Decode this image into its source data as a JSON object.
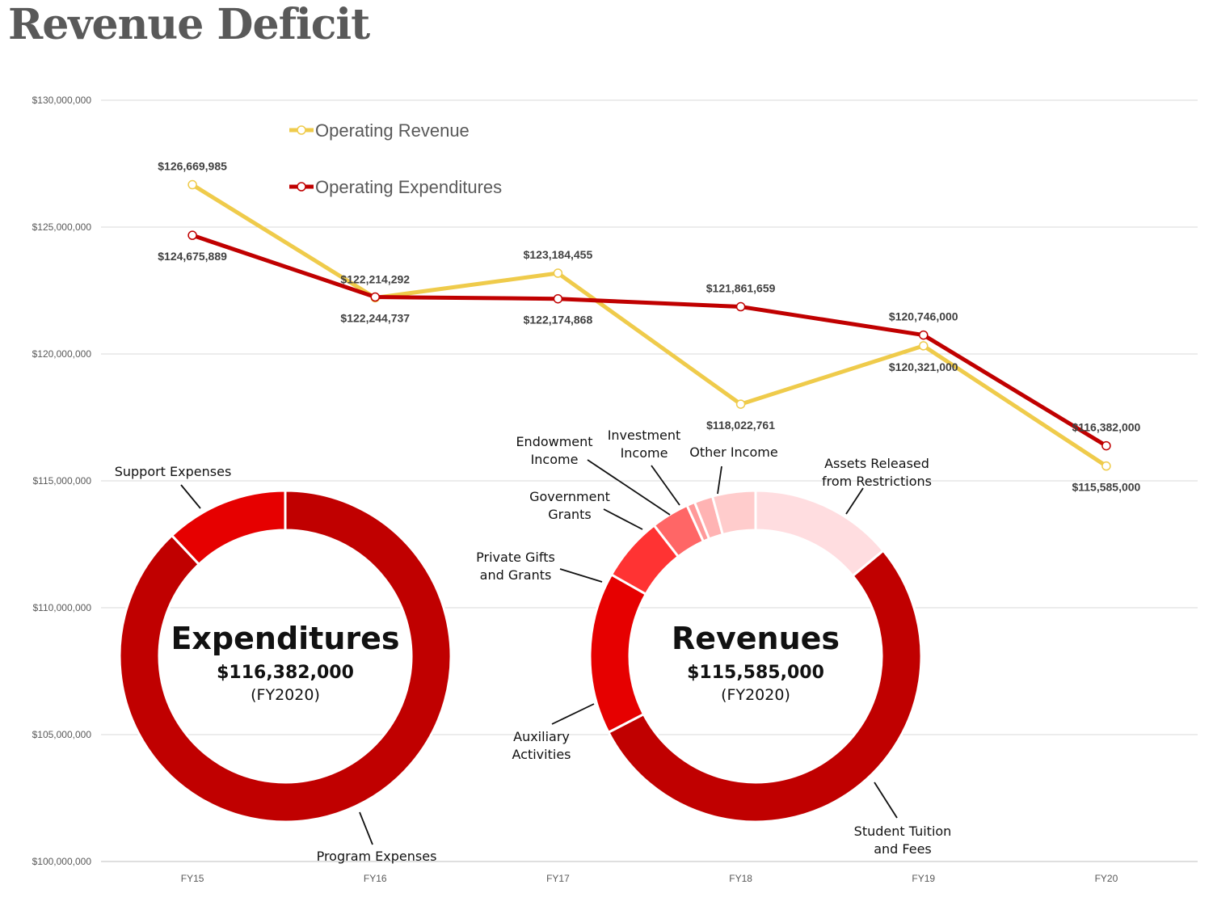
{
  "title": "Revenue Deficit",
  "chart_data": [
    {
      "type": "line",
      "categories": [
        "FY15",
        "FY16",
        "FY17",
        "FY18",
        "FY19",
        "FY20"
      ],
      "y_ticks": [
        "$100,000,000",
        "$105,000,000",
        "$110,000,000",
        "$115,000,000",
        "$120,000,000",
        "$125,000,000",
        "$130,000,000"
      ],
      "ylim": [
        100000000,
        130000000
      ],
      "grid": true,
      "legend_position": "top-left",
      "series": [
        {
          "name": "Operating Revenue",
          "color": "#EFCB4B",
          "values": [
            126669985,
            122214292,
            123184455,
            118022761,
            120321000,
            115585000
          ],
          "labels": [
            "$126,669,985",
            "$122,214,292",
            "$123,184,455",
            "$118,022,761",
            "$120,321,000",
            "$115,585,000"
          ],
          "label_side": [
            "above",
            "above",
            "above",
            "below",
            "below",
            "below"
          ]
        },
        {
          "name": "Operating Expenditures",
          "color": "#C00000",
          "values": [
            124675889,
            122244737,
            122174868,
            121861659,
            120746000,
            116382000
          ],
          "labels": [
            "$124,675,889",
            "$122,244,737",
            "$122,174,868",
            "$121,861,659",
            "$120,746,000",
            "$116,382,000"
          ],
          "label_side": [
            "below",
            "below",
            "below",
            "above",
            "above",
            "above"
          ]
        }
      ]
    },
    {
      "type": "pie",
      "donut": true,
      "center_title": "Expenditures",
      "center_amount": "$116,382,000",
      "center_period": "(FY2020)",
      "slices": [
        {
          "label": "Program Expenses",
          "value": 88,
          "color": "#C00000"
        },
        {
          "label": "Support Expenses",
          "value": 12,
          "color": "#E60000"
        }
      ]
    },
    {
      "type": "pie",
      "donut": true,
      "center_title": "Revenues",
      "center_amount": "$115,585,000",
      "center_period": "(FY2020)",
      "slices": [
        {
          "label": "Assets Released from Restrictions",
          "value": 14.0,
          "color": "#FFDDE0"
        },
        {
          "label": "Student Tuition and Fees",
          "value": 53.4,
          "color": "#C00000"
        },
        {
          "label": "Auxiliary Activities",
          "value": 15.8,
          "color": "#E60000"
        },
        {
          "label": "Private Gifts and Grants",
          "value": 6.3,
          "color": "#FF3333"
        },
        {
          "label": "Government Grants",
          "value": 3.7,
          "color": "#FF6666"
        },
        {
          "label": "Endowment Income",
          "value": 0.8,
          "color": "#FF9999"
        },
        {
          "label": "Investment Income",
          "value": 1.8,
          "color": "#FFB3B3"
        },
        {
          "label": "Other Income",
          "value": 4.2,
          "color": "#FFCCCC"
        }
      ]
    }
  ]
}
